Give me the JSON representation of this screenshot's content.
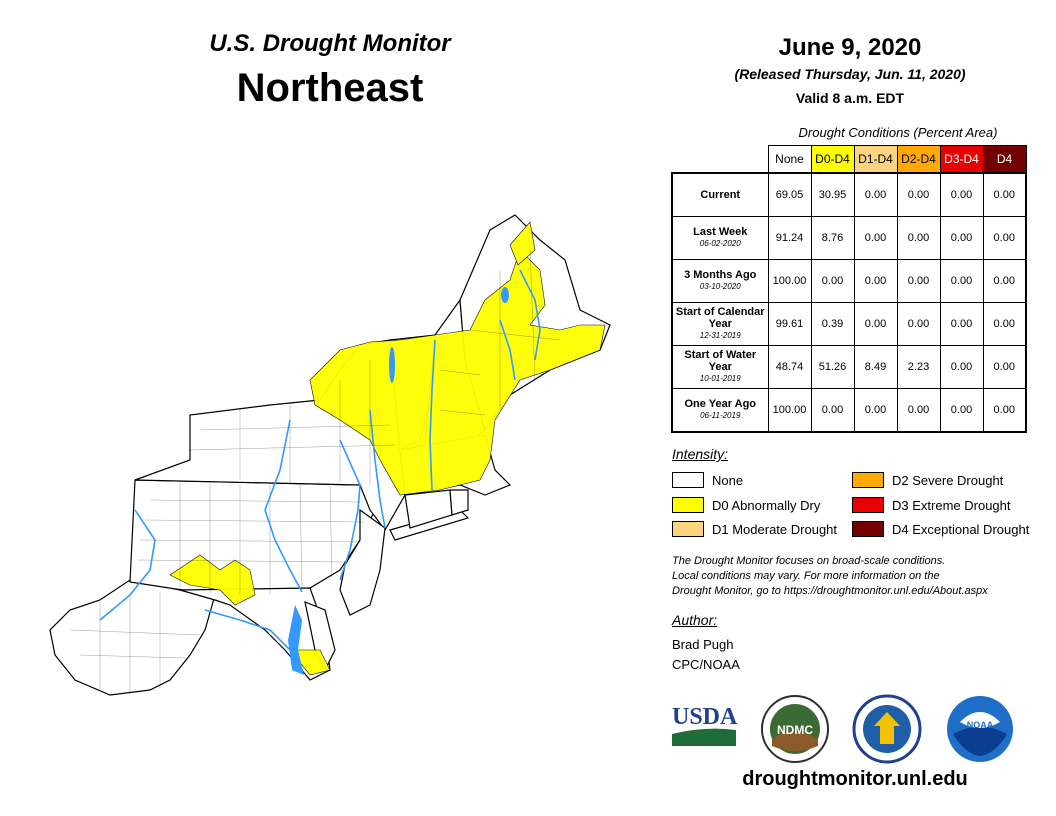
{
  "header": {
    "subtitle": "U.S. Drought Monitor",
    "region": "Northeast",
    "date": "June 9, 2020",
    "released": "(Released Thursday, Jun. 11, 2020)",
    "valid": "Valid 8 a.m. EDT"
  },
  "conditions": {
    "caption": "Drought Conditions (Percent Area)",
    "columns": [
      {
        "label": "None",
        "color": "#ffffff",
        "text_color": "#000000"
      },
      {
        "label": "D0-D4",
        "color": "#ffff00",
        "text_color": "#000000"
      },
      {
        "label": "D1-D4",
        "color": "#fcd37f",
        "text_color": "#000000"
      },
      {
        "label": "D2-D4",
        "color": "#ffaa00",
        "text_color": "#000000"
      },
      {
        "label": "D3-D4",
        "color": "#e60000",
        "text_color": "#ffffff"
      },
      {
        "label": "D4",
        "color": "#730000",
        "text_color": "#ffffff"
      }
    ],
    "rows": [
      {
        "label": "Current",
        "date": "",
        "values": [
          "69.05",
          "30.95",
          "0.00",
          "0.00",
          "0.00",
          "0.00"
        ]
      },
      {
        "label": "Last Week",
        "date": "06-02-2020",
        "values": [
          "91.24",
          "8.76",
          "0.00",
          "0.00",
          "0.00",
          "0.00"
        ]
      },
      {
        "label": "3 Months Ago",
        "date": "03-10-2020",
        "values": [
          "100.00",
          "0.00",
          "0.00",
          "0.00",
          "0.00",
          "0.00"
        ]
      },
      {
        "label": "Start of Calendar Year",
        "date": "12-31-2019",
        "values": [
          "99.61",
          "0.39",
          "0.00",
          "0.00",
          "0.00",
          "0.00"
        ]
      },
      {
        "label": "Start of Water Year",
        "date": "10-01-2019",
        "values": [
          "48.74",
          "51.26",
          "8.49",
          "2.23",
          "0.00",
          "0.00"
        ]
      },
      {
        "label": "One Year Ago",
        "date": "06-11-2019",
        "values": [
          "100.00",
          "0.00",
          "0.00",
          "0.00",
          "0.00",
          "0.00"
        ]
      }
    ]
  },
  "legend": {
    "title": "Intensity:",
    "items": [
      {
        "label": "None",
        "color": "#ffffff"
      },
      {
        "label": "D0 Abnormally Dry",
        "color": "#ffff00"
      },
      {
        "label": "D1 Moderate Drought",
        "color": "#fcd37f"
      },
      {
        "label": "D2 Severe Drought",
        "color": "#ffaa00"
      },
      {
        "label": "D3 Extreme Drought",
        "color": "#e60000"
      },
      {
        "label": "D4 Exceptional Drought",
        "color": "#730000"
      }
    ]
  },
  "note": [
    "The Drought Monitor focuses on broad-scale conditions.",
    "Local conditions may vary. For more information on the",
    "Drought Monitor, go to https://droughtmonitor.unl.edu/About.aspx"
  ],
  "author": {
    "label": "Author:",
    "name": "Brad Pugh",
    "org": "CPC/NOAA"
  },
  "logos": {
    "usda": "USDA",
    "ndmc": "NDMC",
    "noaa": "NOAA"
  },
  "url": "droughtmonitor.unl.edu",
  "map": {
    "drought_color": "#ffff00",
    "water_color": "#3399ff",
    "land_color": "#ffffff"
  }
}
